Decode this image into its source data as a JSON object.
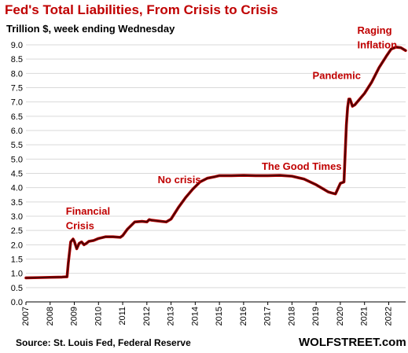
{
  "title": "Fed's Total Liabilities, From Crisis to Crisis",
  "subtitle": "Trillion $, week ending Wednesday",
  "source": "Source: St. Louis Fed, Federal Reserve",
  "brand": "WOLFSTREET.com",
  "colors": {
    "line": "#4a0000",
    "line_edge": "#c00000",
    "title": "#c00000",
    "annotation": "#c00000",
    "grid": "#d9d9d9"
  },
  "chart_data": {
    "type": "line",
    "title": "Fed's Total Liabilities, From Crisis to Crisis",
    "subtitle": "Trillion $, week ending Wednesday",
    "xlabel": "",
    "ylabel": "",
    "xlim": [
      2007,
      2022.7
    ],
    "ylim": [
      0,
      9.0
    ],
    "grid": "horizontal",
    "x_ticks": [
      "2007",
      "2008",
      "2009",
      "2010",
      "2011",
      "2012",
      "2013",
      "2014",
      "2015",
      "2016",
      "2017",
      "2018",
      "2019",
      "2020",
      "2021",
      "2022"
    ],
    "y_ticks": [
      "0.0",
      "0.5",
      "1.0",
      "1.5",
      "2.0",
      "2.5",
      "3.0",
      "3.5",
      "4.0",
      "4.5",
      "5.0",
      "5.5",
      "6.0",
      "6.5",
      "7.0",
      "7.5",
      "8.0",
      "8.5",
      "9.0"
    ],
    "annotations": [
      {
        "text": "Financial",
        "x": 2008.65,
        "y": 3.05
      },
      {
        "text": "Crisis",
        "x": 2008.65,
        "y": 2.55
      },
      {
        "text": "No crisis",
        "x": 2012.45,
        "y": 4.15
      },
      {
        "text": "The Good Times",
        "x": 2016.75,
        "y": 4.62
      },
      {
        "text": "Pandemic",
        "x": 2018.85,
        "y": 7.8
      },
      {
        "text": "Raging",
        "x": 2020.7,
        "y": 9.38
      },
      {
        "text": "Inflation",
        "x": 2020.7,
        "y": 8.88
      }
    ],
    "series": [
      {
        "x": [
          2007.0,
          2007.5,
          2008.0,
          2008.5,
          2008.7,
          2008.75,
          2008.85,
          2008.95,
          2009.0,
          2009.1,
          2009.2,
          2009.3,
          2009.4,
          2009.5,
          2009.6,
          2009.8,
          2010.0,
          2010.3,
          2010.6,
          2010.9,
          2011.0,
          2011.2,
          2011.5,
          2011.8,
          2012.0,
          2012.1,
          2012.2,
          2012.4,
          2012.6,
          2012.8,
          2013.0,
          2013.3,
          2013.6,
          2013.9,
          2014.2,
          2014.5,
          2014.8,
          2015.0,
          2015.5,
          2016.0,
          2016.5,
          2017.0,
          2017.5,
          2018.0,
          2018.5,
          2019.0,
          2019.3,
          2019.5,
          2019.7,
          2019.8,
          2020.0,
          2020.15,
          2020.2,
          2020.25,
          2020.3,
          2020.35,
          2020.4,
          2020.5,
          2020.6,
          2020.75,
          2021.0,
          2021.3,
          2021.6,
          2021.9,
          2022.1,
          2022.3,
          2022.5,
          2022.7
        ],
        "values": [
          0.84,
          0.85,
          0.86,
          0.87,
          0.88,
          1.35,
          2.1,
          2.2,
          2.12,
          1.86,
          2.05,
          2.1,
          2.0,
          2.05,
          2.12,
          2.15,
          2.22,
          2.28,
          2.28,
          2.26,
          2.32,
          2.55,
          2.8,
          2.82,
          2.8,
          2.88,
          2.86,
          2.84,
          2.82,
          2.8,
          2.9,
          3.3,
          3.65,
          3.95,
          4.2,
          4.33,
          4.38,
          4.42,
          4.42,
          4.43,
          4.42,
          4.42,
          4.43,
          4.4,
          4.3,
          4.1,
          3.95,
          3.85,
          3.8,
          3.78,
          4.15,
          4.2,
          5.2,
          6.2,
          6.8,
          7.1,
          7.1,
          6.85,
          6.9,
          7.05,
          7.3,
          7.7,
          8.2,
          8.6,
          8.85,
          8.92,
          8.9,
          8.8
        ]
      }
    ]
  }
}
